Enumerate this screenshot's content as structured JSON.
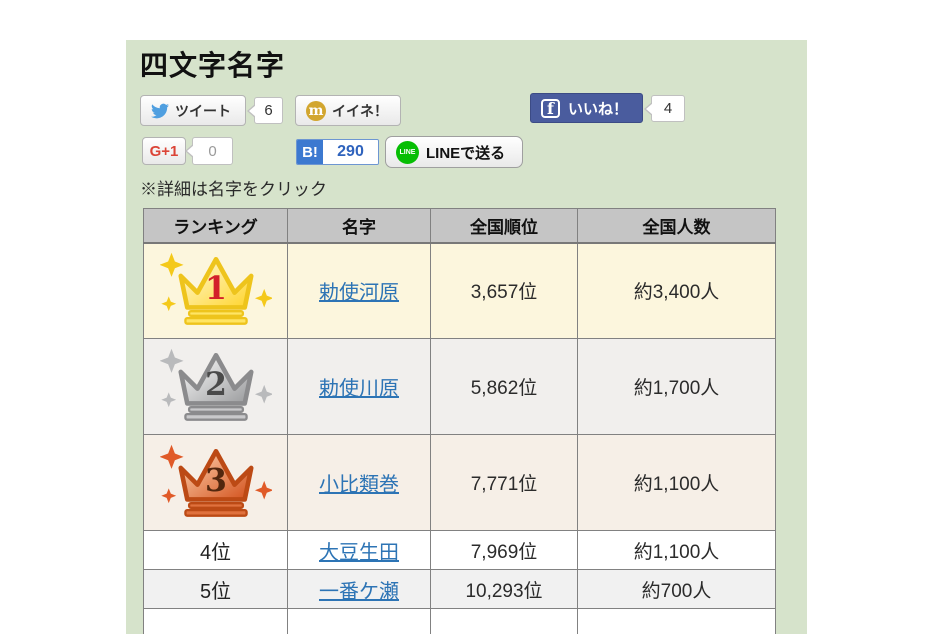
{
  "page": {
    "title": "四文字名字",
    "note": "※詳細は名字をクリック",
    "panel_bg": "#d6e3cb"
  },
  "share": {
    "twitter": {
      "label": "ツイート",
      "count": "6"
    },
    "mixi": {
      "label": "イイネ！",
      "icon_letter": "m",
      "icon_color": "#d2a62f"
    },
    "facebook": {
      "label": "いいね！",
      "count": "4",
      "icon_letter": "f",
      "button_color": "#4a5c9e"
    },
    "gplus": {
      "label": "G+1",
      "count": "0",
      "label_color": "#db4437"
    },
    "hatena": {
      "icon_label": "B!",
      "count": "290",
      "icon_color": "#3c79d0"
    },
    "line": {
      "label": "LINEで送る",
      "icon_label": "LINE",
      "icon_color": "#06be04"
    }
  },
  "table": {
    "headers": [
      "ランキング",
      "名字",
      "全国順位",
      "全国人数"
    ],
    "link_color": "#2d74b5",
    "rows": [
      {
        "rank": "1",
        "rank_type": "crown",
        "crown": "gold",
        "name": "勅使河原",
        "national_rank": "3,657位",
        "population": "約3,400人",
        "bg": "#fcf6dd"
      },
      {
        "rank": "2",
        "rank_type": "crown",
        "crown": "silver",
        "name": "勅使川原",
        "national_rank": "5,862位",
        "population": "約1,700人",
        "bg": "#f1efed"
      },
      {
        "rank": "3",
        "rank_type": "crown",
        "crown": "bronze",
        "name": "小比類巻",
        "national_rank": "7,771位",
        "population": "約1,100人",
        "bg": "#f6efe7"
      },
      {
        "rank": "4位",
        "rank_type": "text",
        "name": "大豆生田",
        "national_rank": "7,969位",
        "population": "約1,100人",
        "bg": "#ffffff"
      },
      {
        "rank": "5位",
        "rank_type": "text",
        "name": "一番ケ瀬",
        "national_rank": "10,293位",
        "population": "約700人",
        "bg": "#f1f1f1"
      }
    ]
  },
  "crowns": {
    "gold": {
      "light": "#fffbdf",
      "dark": "#ffd42a",
      "outline": "#eec41c",
      "band": "#ffe564",
      "number": "#d3202a",
      "sparkle": "#f4c91a"
    },
    "silver": {
      "light": "#ffffff",
      "dark": "#98999b",
      "outline": "#8b8b8d",
      "band": "#c9c9cb",
      "number": "#4a4a4a",
      "sparkle": "#b9babc"
    },
    "bronze": {
      "light": "#ffd8b5",
      "dark": "#d24f1a",
      "outline": "#bc4a15",
      "band": "#e0713d",
      "number": "#52270e",
      "sparkle": "#e05a28"
    }
  }
}
